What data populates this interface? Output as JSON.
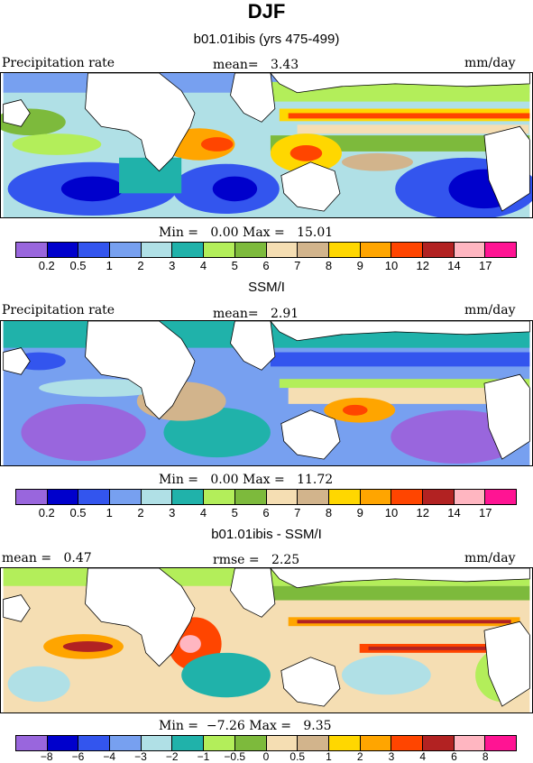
{
  "figure": {
    "title": "DJF",
    "colors": {
      "levels": [
        "#9966dd",
        "#0000cc",
        "#3355ee",
        "#77a0f0",
        "#b0e0e6",
        "#20b2aa",
        "#b3ee5a",
        "#7dba3c",
        "#f5deb3",
        "#d2b48c",
        "#ffd700",
        "#ffa500",
        "#ff4500",
        "#b22222",
        "#ffb6c1",
        "#ff1493"
      ],
      "land": "#ffffff",
      "coast": "#000000"
    }
  },
  "panel1": {
    "subtitle": "b01.01ibis (yrs 475-499)",
    "left_label": "Precipitation rate",
    "mean_text": "mean=   3.43",
    "units": "mm/day",
    "minmax": "Min =   0.00 Max =   15.01",
    "ticks": [
      "0.2",
      "0.5",
      "1",
      "2",
      "3",
      "4",
      "5",
      "6",
      "7",
      "8",
      "9",
      "10",
      "12",
      "14",
      "17"
    ]
  },
  "panel2": {
    "subtitle": "SSM/I",
    "left_label": "Precipitation rate",
    "mean_text": "mean=   2.91",
    "units": "mm/day",
    "minmax": "Min =   0.00 Max =   11.72",
    "ticks": [
      "0.2",
      "0.5",
      "1",
      "2",
      "3",
      "4",
      "5",
      "6",
      "7",
      "8",
      "9",
      "10",
      "12",
      "14",
      "17"
    ]
  },
  "panel3": {
    "subtitle": "b01.01ibis - SSM/I",
    "mean_text": "mean =   0.47",
    "rmse_text": "rmse =   2.25",
    "units": "mm/day",
    "minmax": "Min =  −7.26 Max =   9.35",
    "ticks": [
      "−8",
      "−6",
      "−4",
      "−3",
      "−2",
      "−1",
      "−0.5",
      "0",
      "0.5",
      "1",
      "2",
      "3",
      "4",
      "6",
      "8"
    ]
  }
}
